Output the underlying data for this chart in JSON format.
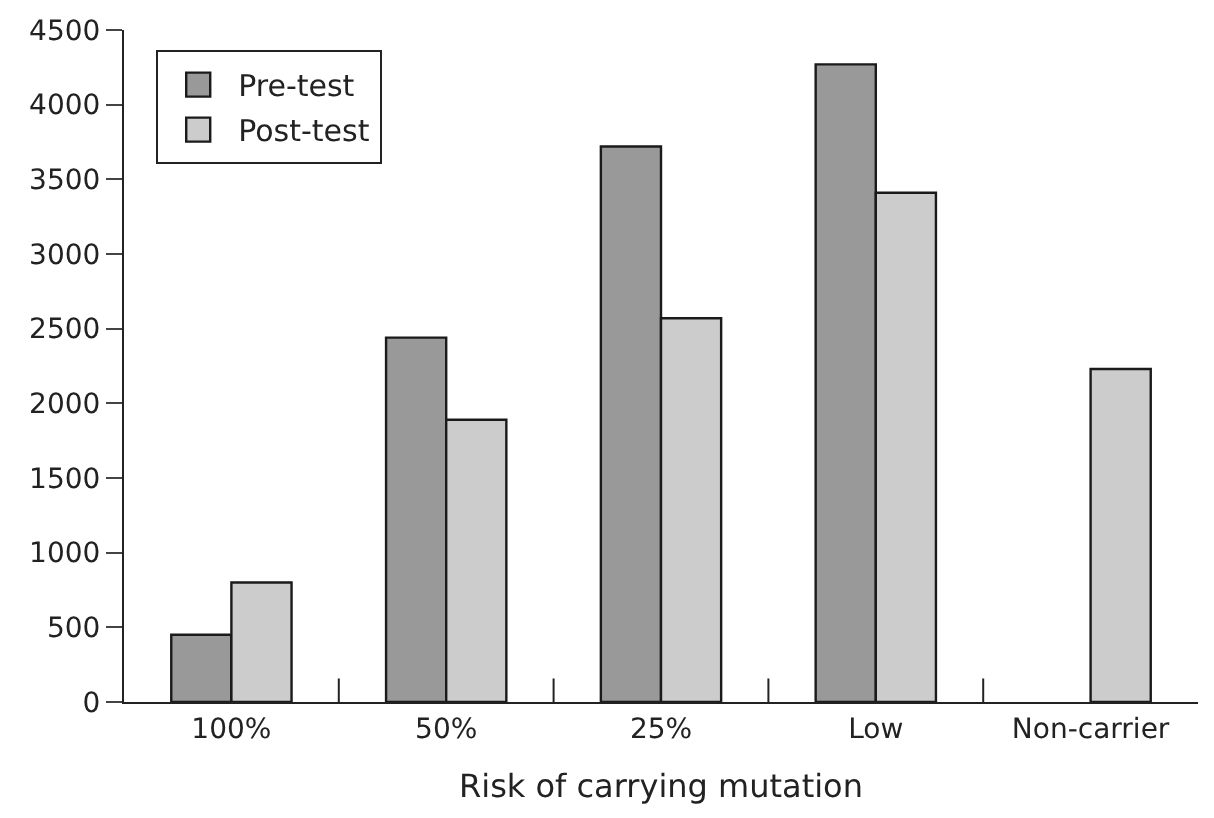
{
  "chart_data": {
    "type": "bar",
    "xlabel": "Risk of carrying mutation",
    "categories": [
      "100%",
      "50%",
      "25%",
      "Low",
      "Non-carrier"
    ],
    "series": [
      {
        "name": "Pre-test",
        "color": "#999999",
        "values": [
          450,
          2440,
          3720,
          4270,
          null
        ]
      },
      {
        "name": "Post-test",
        "color": "#cccccc",
        "values": [
          800,
          1890,
          2570,
          3410,
          2230
        ]
      }
    ],
    "ylim": [
      0,
      4500
    ],
    "yticks": [
      0,
      500,
      1000,
      1500,
      2000,
      2500,
      3000,
      3500,
      4000,
      4500
    ],
    "legend": "top left"
  }
}
